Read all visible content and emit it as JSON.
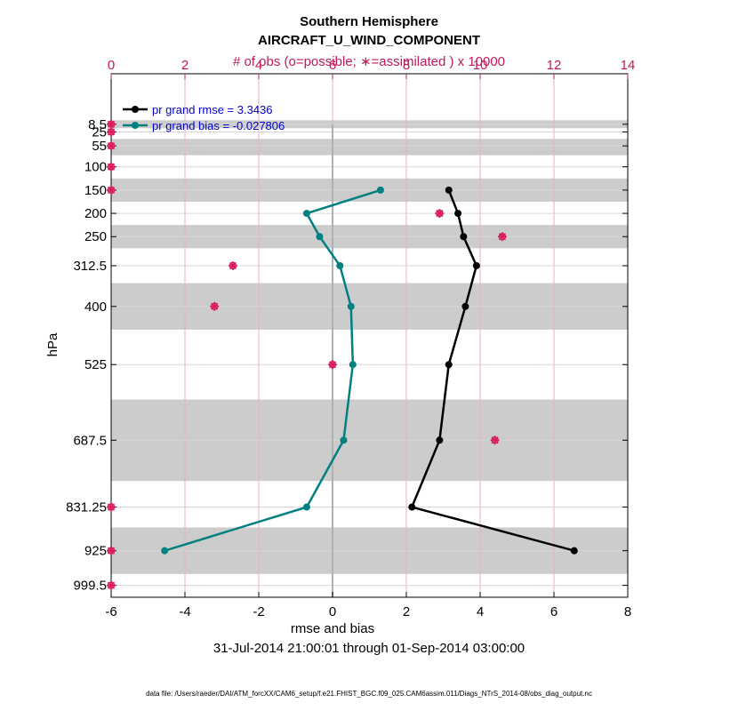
{
  "titles": {
    "line1": "Southern Hemisphere",
    "line2": "AIRCRAFT_U_WIND_COMPONENT",
    "top_axis": "# of obs (o=possible; ∗=assimilated ) x 10000"
  },
  "footer": {
    "date_range": "31-Jul-2014 21:00:01 through 01-Sep-2014 03:00:00",
    "data_file": "data file: /Users/raeder/DAI/ATM_forcXX/CAM6_setup/f.e21.FHIST_BGC.f09_025.CAM6assim.011/Diags_NTrS_2014-08/obs_diag_output.nc"
  },
  "colors": {
    "rmse": "#000000",
    "bias": "#008080",
    "obs": "#d81b60",
    "band": "#cccccc",
    "legend_text": "#0000cc",
    "top_axis": "#c2185b"
  },
  "chart_data": {
    "type": "line",
    "xlabel": "rmse and bias",
    "ylabel": "hPa",
    "xlim": [
      -6,
      8
    ],
    "x_ticks": [
      -6,
      -4,
      -2,
      0,
      2,
      4,
      6,
      8
    ],
    "top_xlim": [
      0,
      14
    ],
    "top_ticks": [
      0,
      2,
      4,
      6,
      8,
      10,
      12,
      14
    ],
    "y_levels": [
      "8.5",
      "25",
      "55",
      "100",
      "150",
      "200",
      "250",
      "312.5",
      "400",
      "525",
      "687.5",
      "831.25",
      "925",
      "999.5"
    ],
    "y_level_values": [
      8.5,
      25,
      55,
      100,
      150,
      200,
      250,
      312.5,
      400,
      525,
      687.5,
      831.25,
      925,
      999.5
    ],
    "ylim": [
      1025,
      -100
    ],
    "grid": true,
    "legend_placement": "top-left",
    "shaded_bands_hPa": [
      [
        0,
        17
      ],
      [
        40,
        75
      ],
      [
        125,
        175
      ],
      [
        225,
        275
      ],
      [
        350,
        450
      ],
      [
        600,
        775
      ],
      [
        875,
        975
      ]
    ],
    "series": [
      {
        "key": "rmse",
        "name": "pr grand rmse = 3.3436",
        "levels": [
          150,
          200,
          250,
          312.5,
          400,
          525,
          687.5,
          831.25,
          925
        ],
        "values": [
          3.15,
          3.4,
          3.55,
          3.9,
          3.6,
          3.15,
          2.9,
          2.15,
          6.55
        ]
      },
      {
        "key": "bias",
        "name": "pr grand bias = -0.027806",
        "levels": [
          150,
          200,
          250,
          312.5,
          400,
          525,
          687.5,
          831.25,
          925
        ],
        "values": [
          1.3,
          -0.7,
          -0.35,
          0.2,
          0.5,
          0.55,
          0.3,
          -0.7,
          -4.55
        ]
      }
    ],
    "obs_counts_x10000": {
      "levels": [
        8.5,
        25,
        55,
        100,
        150,
        200,
        250,
        312.5,
        400,
        525,
        687.5,
        831.25,
        925,
        999.5
      ],
      "values": [
        0,
        0,
        0,
        0,
        0,
        8.9,
        10.6,
        3.3,
        2.8,
        6.0,
        10.4,
        0,
        0,
        0
      ]
    }
  }
}
